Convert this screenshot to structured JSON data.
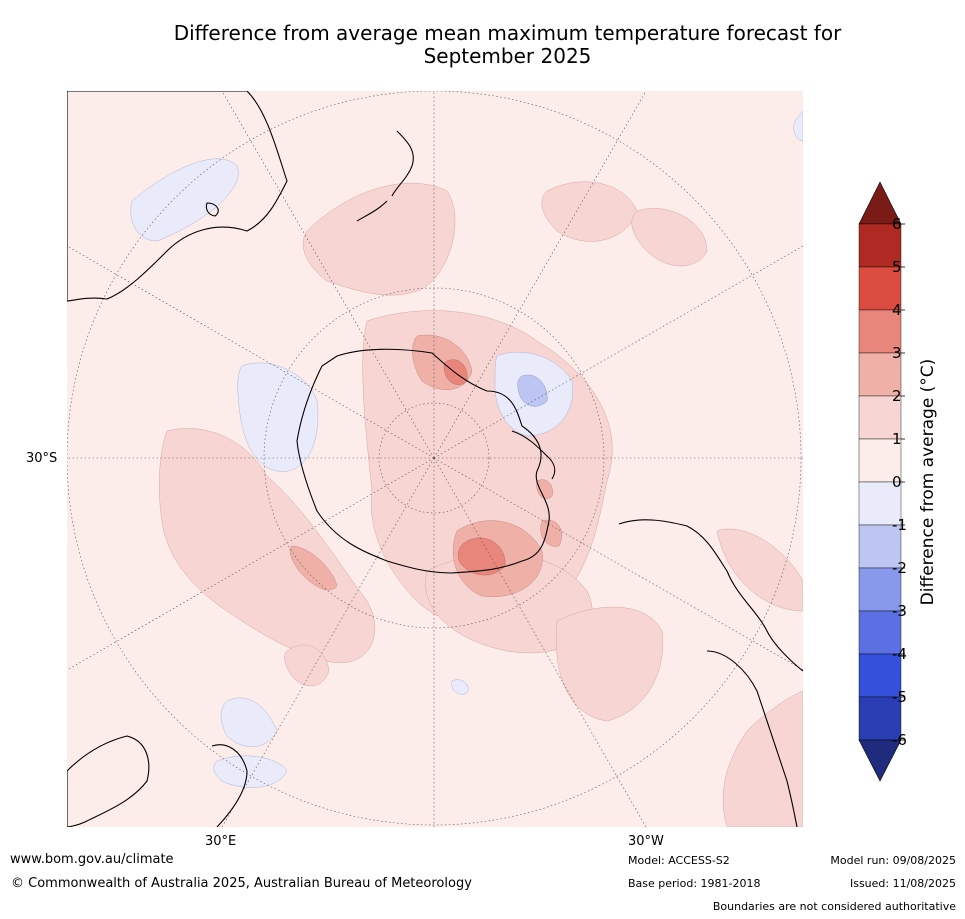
{
  "title_line1": "Difference from average mean maximum temperature forecast for",
  "title_line2": "September 2025",
  "grid_labels": {
    "lat": "30°S",
    "lon_left": "30°E",
    "lon_right": "30°W"
  },
  "colorbar": {
    "label": "Difference from average (°C)",
    "ticks": [
      "6",
      "5",
      "4",
      "3",
      "2",
      "1",
      "0",
      "-1",
      "-2",
      "-3",
      "-4",
      "-5",
      "-6"
    ],
    "colors": {
      "over": "#7a1b15",
      "c5_6": "#ae2a22",
      "c4_5": "#da4b40",
      "c3_4": "#e8867c",
      "c2_3": "#efb0a8",
      "c1_2": "#f6d5d2",
      "c0_1": "#fcecea",
      "cm1_0": "#e9ebfb",
      "cm2_m1": "#bdc5f2",
      "cm3_m2": "#8898ea",
      "cm4_m3": "#5b70e2",
      "cm5_m4": "#3351db",
      "cm6_m5": "#2a3db2",
      "under": "#1f2c7e"
    }
  },
  "footer": {
    "website": "www.bom.gov.au/climate",
    "copyright": "© Commonwealth of Australia 2025, Australian Bureau of Meteorology",
    "model": "Model: ACCESS-S2",
    "base_period": "Base period: 1981-2018",
    "model_run": "Model run: 09/08/2025",
    "issued": "Issued: 11/08/2025",
    "disclaimer": "Boundaries are not considered authoritative"
  }
}
